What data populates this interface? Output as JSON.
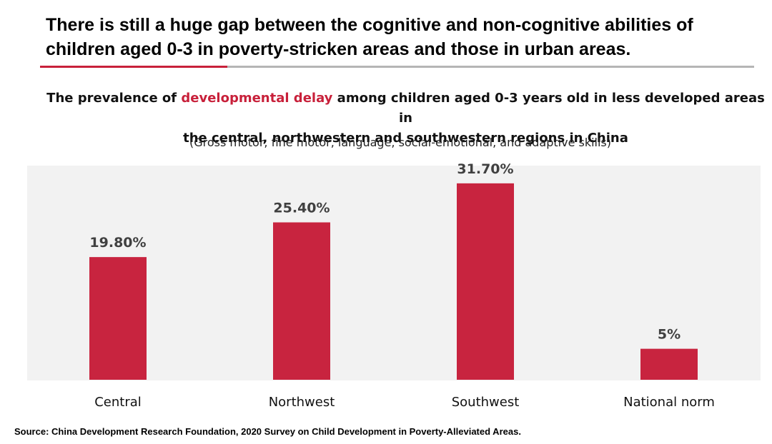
{
  "headline": {
    "line1": "There is still a huge gap between the cognitive and non-cognitive abilities of",
    "line2": "children aged 0-3 in poverty-stricken areas and those in urban areas."
  },
  "colors": {
    "accent": "#c8203a",
    "bar": "#c8243f",
    "rule": "#b5b5b5",
    "plot_bg": "#f2f2f2"
  },
  "chart_data": {
    "type": "bar",
    "title_prefix": "The prevalence of ",
    "title_highlight": "developmental delay",
    "title_suffix": " among children aged 0-3 years old in less developed areas in",
    "title_line2": "the central, northwestern and southwestern regions in China",
    "subtitle": "(Gross motor, fine motor, language, social-emotional, and adaptive skills)",
    "categories": [
      "Central",
      "Northwest",
      "Southwest",
      "National norm"
    ],
    "values": [
      19.8,
      25.4,
      31.7,
      5
    ],
    "data_labels": [
      "19.80%",
      "25.40%",
      "31.70%",
      "5%"
    ],
    "ylim": [
      0,
      35
    ],
    "xlabel": "",
    "ylabel": "",
    "grid": false,
    "legend": "none"
  },
  "source": "Source: China Development Research Foundation, 2020 Survey on Child Development in Poverty-Alleviated Areas."
}
